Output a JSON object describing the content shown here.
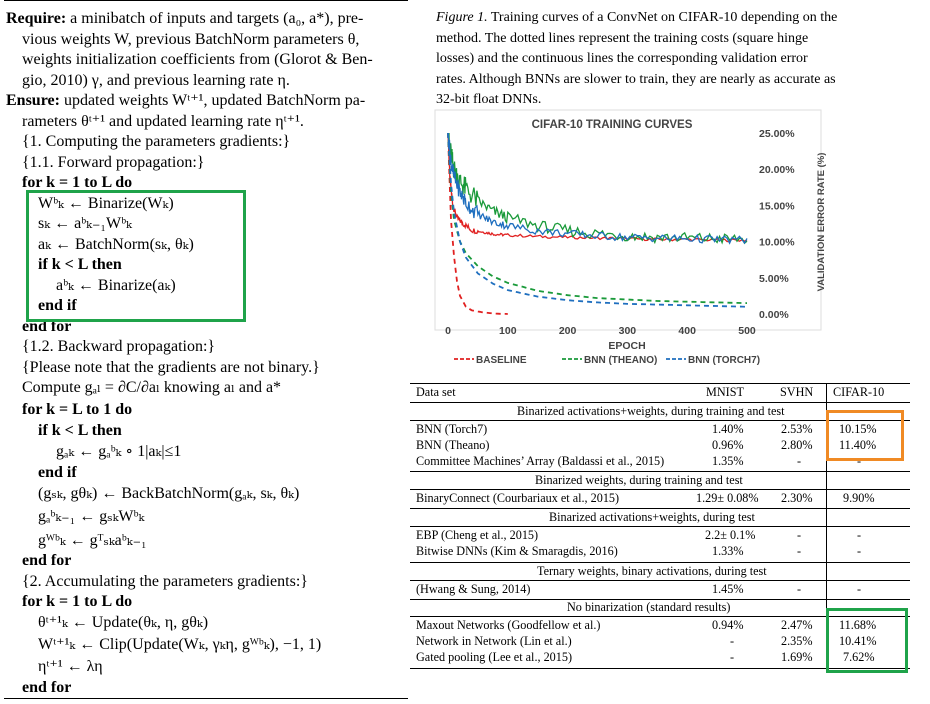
{
  "algorithm": {
    "require_label": "Require:",
    "require_lines": [
      "a minibatch of inputs and targets (a₀, a*), pre-",
      "vious weights W, previous BatchNorm parameters θ,",
      "weights initialization coefficients from (Glorot & Ben-",
      "gio, 2010) γ, and previous learning rate η."
    ],
    "ensure_label": "Ensure:",
    "ensure_lines": [
      "updated weights Wᵗ⁺¹, updated BatchNorm pa-",
      "rameters θᵗ⁺¹ and updated learning rate ηᵗ⁺¹."
    ],
    "lines": [
      "{1. Computing the parameters gradients:}",
      "{1.1. Forward propagation:}",
      "for k = 1 to L do",
      "Wᵇₖ ← Binarize(Wₖ)",
      "sₖ ← aᵇₖ₋₁Wᵇₖ",
      "aₖ ← BatchNorm(sₖ, θₖ)",
      "if k < L then",
      "aᵇₖ ← Binarize(aₖ)",
      "end if",
      "end for",
      "{1.2. Backward propagation:}",
      "{Please note that the gradients are not binary.}",
      "Compute gₐₗ = ∂C/∂aₗ knowing aₗ and a*",
      "for k = L to 1 do",
      "if k < L then",
      "gₐₖ ← gₐᵇₖ ∘ 1|aₖ|≤1",
      "end if",
      "(gₛₖ, gθₖ) ← BackBatchNorm(gₐₖ, sₖ, θₖ)",
      "gₐᵇₖ₋₁ ← gₛₖWᵇₖ",
      "gᵂᵇₖ ← gᵀₛₖaᵇₖ₋₁",
      "end for",
      "{2. Accumulating the parameters gradients:}",
      "for k = 1 to L do",
      "θᵗ⁺¹ₖ ← Update(θₖ, η, gθₖ)",
      "Wᵗ⁺¹ₖ ← Clip(Update(Wₖ, γₖη, gᵂᵇₖ), −1, 1)",
      "ηᵗ⁺¹ ← λη",
      "end for"
    ]
  },
  "caption": {
    "label": "Figure 1.",
    "text": "Training curves of a ConvNet on CIFAR-10 depending on the method. The dotted lines represent the training costs (square hinge losses) and the continuous lines the corresponding validation error rates. Although BNNs are slower to train, they are nearly as accurate as 32-bit float DNNs."
  },
  "chart_data": {
    "type": "line",
    "title": "CIFAR-10 TRAINING CURVES",
    "xlabel": "EPOCH",
    "ylabel": "VALIDATION ERROR RATE (%)",
    "xlim": [
      0,
      500
    ],
    "ylim": [
      0,
      25
    ],
    "x_ticks": [
      "0",
      "100",
      "200",
      "300",
      "400",
      "500"
    ],
    "y_ticks": [
      "0.00%",
      "5.00%",
      "10.00%",
      "15.00%",
      "20.00%",
      "25.00%"
    ],
    "grid": false,
    "legend_position": "bottom",
    "legend": [
      "BASELINE",
      "BNN (THEANO)",
      "BNN (TORCH7)"
    ],
    "colors": {
      "baseline": "#e02020",
      "theano": "#1a9a3a",
      "torch": "#1f6fbf"
    },
    "series": [
      {
        "name": "BASELINE",
        "style": "solid",
        "x": [
          0,
          3,
          8,
          15,
          25,
          40,
          60,
          80,
          100,
          150,
          200,
          250,
          300,
          350,
          400,
          450,
          500
        ],
        "y": [
          25,
          19,
          15,
          13.3,
          12.5,
          11.6,
          11.3,
          11,
          10.9,
          10.7,
          10.6,
          10.5,
          10.4,
          10.3,
          10.3,
          10.2,
          10.2
        ]
      },
      {
        "name": "BASELINE",
        "style": "dotted",
        "x": [
          0,
          2,
          5,
          10,
          15,
          20,
          30,
          40,
          60,
          80,
          100
        ],
        "y": [
          25,
          20,
          13,
          8,
          4.5,
          2.5,
          1,
          0.5,
          0.2,
          0.05,
          0
        ]
      },
      {
        "name": "BNN (THEANO)",
        "style": "solid",
        "x": [
          0,
          5,
          10,
          20,
          30,
          50,
          75,
          100,
          150,
          200,
          250,
          300,
          350,
          400,
          450,
          500
        ],
        "y": [
          25,
          22,
          20,
          18.3,
          17.3,
          15.6,
          14.2,
          13.3,
          12.2,
          11.5,
          11.1,
          10.8,
          10.6,
          10.5,
          10.4,
          10.3
        ]
      },
      {
        "name": "BNN (THEANO)",
        "style": "dotted",
        "x": [
          0,
          5,
          10,
          20,
          30,
          50,
          75,
          100,
          150,
          200,
          250,
          300,
          350,
          400,
          450,
          500
        ],
        "y": [
          25,
          17,
          13,
          10,
          8.4,
          6.6,
          5.2,
          4.3,
          3.2,
          2.6,
          2.2,
          2,
          1.8,
          1.7,
          1.6,
          1.5
        ]
      },
      {
        "name": "BNN (TORCH7)",
        "style": "solid",
        "x": [
          0,
          5,
          10,
          20,
          30,
          50,
          75,
          100,
          150,
          200,
          250,
          300,
          350,
          400,
          450,
          500
        ],
        "y": [
          25,
          21,
          19,
          16.8,
          15.4,
          13.8,
          12.7,
          12.2,
          11.5,
          11.1,
          10.8,
          10.6,
          10.5,
          10.4,
          10.3,
          10.2
        ]
      },
      {
        "name": "BNN (TORCH7)",
        "style": "dotted",
        "x": [
          0,
          5,
          10,
          20,
          30,
          50,
          75,
          100,
          150,
          200,
          250,
          300,
          350,
          400,
          450,
          500
        ],
        "y": [
          25,
          18,
          14,
          10,
          7.8,
          5.6,
          4.2,
          3.3,
          2.4,
          1.9,
          1.6,
          1.4,
          1.3,
          1.2,
          1.1,
          1.0
        ]
      }
    ]
  },
  "table": {
    "headers": [
      "Data set",
      "MNIST",
      "SVHN",
      "CIFAR-10"
    ],
    "sections": [
      {
        "title": "Binarized activations+weights, during training and test",
        "rows": [
          [
            "BNN (Torch7)",
            "1.40%",
            "2.53%",
            "10.15%"
          ],
          [
            "BNN (Theano)",
            "0.96%",
            "2.80%",
            "11.40%"
          ],
          [
            "Committee Machines’ Array (Baldassi et al., 2015)",
            "1.35%",
            "-",
            "-"
          ]
        ]
      },
      {
        "title": "Binarized weights, during training and test",
        "rows": [
          [
            "BinaryConnect (Courbariaux et al., 2015)",
            "1.29± 0.08%",
            "2.30%",
            "9.90%"
          ]
        ]
      },
      {
        "title": "Binarized activations+weights, during test",
        "rows": [
          [
            "EBP (Cheng et al., 2015)",
            "2.2± 0.1%",
            "-",
            "-"
          ],
          [
            "Bitwise DNNs (Kim & Smaragdis, 2016)",
            "1.33%",
            "-",
            "-"
          ]
        ]
      },
      {
        "title": "Ternary weights, binary activations, during test",
        "rows": [
          [
            "(Hwang & Sung, 2014)",
            "1.45%",
            "-",
            "-"
          ]
        ]
      },
      {
        "title": "No binarization (standard results)",
        "rows": [
          [
            "Maxout Networks (Goodfellow et al.)",
            "0.94%",
            "2.47%",
            "11.68%"
          ],
          [
            "Network in Network (Lin et al.)",
            "-",
            "2.35%",
            "10.41%"
          ],
          [
            "Gated pooling (Lee et al., 2015)",
            "-",
            "1.69%",
            "7.62%"
          ]
        ]
      }
    ]
  },
  "highlight_colors": {
    "green": "#1fa34a",
    "orange": "#f08a24"
  }
}
